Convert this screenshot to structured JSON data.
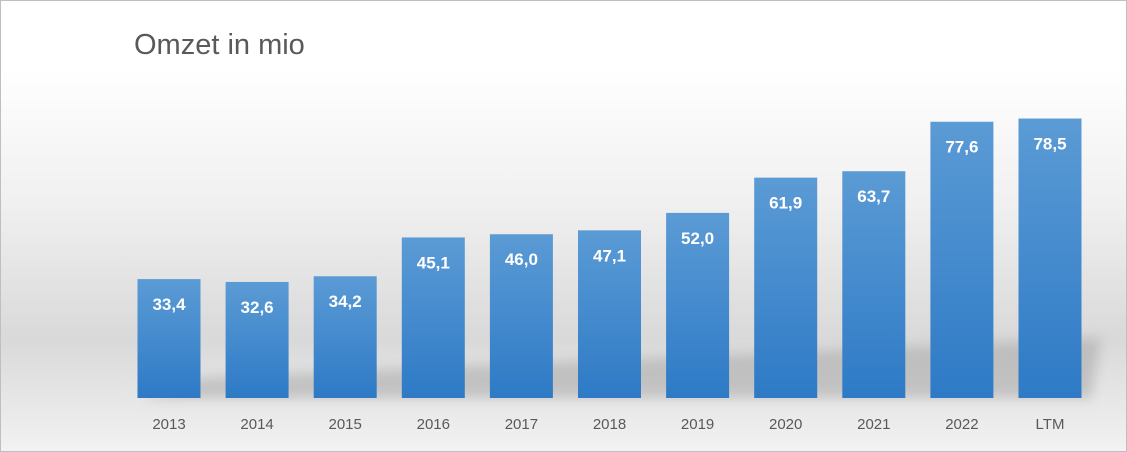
{
  "chart_data": {
    "type": "bar",
    "title": "Omzet in mio",
    "categories": [
      "2013",
      "2014",
      "2015",
      "2016",
      "2017",
      "2018",
      "2019",
      "2020",
      "2021",
      "2022",
      "LTM"
    ],
    "values": [
      33.4,
      32.6,
      34.2,
      45.1,
      46.0,
      47.1,
      52.0,
      61.9,
      63.7,
      77.6,
      78.5
    ],
    "labels": [
      "33,4",
      "32,6",
      "34,2",
      "45,1",
      "46,0",
      "47,1",
      "52,0",
      "61,9",
      "63,7",
      "77,6",
      "78,5"
    ],
    "xlabel": "",
    "ylabel": "",
    "ylim": [
      0,
      80
    ],
    "grid": false,
    "legend": "none",
    "colors": {
      "bar_top": "#5b9bd5",
      "bar_bottom": "#2e7ac6"
    }
  }
}
